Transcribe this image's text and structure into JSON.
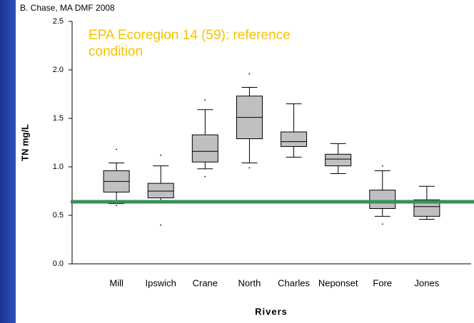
{
  "chart_data": {
    "type": "box",
    "source": "B. Chase, MA DMF 2008",
    "y_label": "TN mg/L",
    "x_label": "Rivers",
    "annotation": "EPA Ecoregion 14 (59): reference condition",
    "categories": [
      "Mill",
      "Ipswich",
      "Crane",
      "North",
      "Charles",
      "Neponset",
      "Fore",
      "Jones"
    ],
    "boxes": [
      {
        "whisker_low": 0.62,
        "q1": 0.74,
        "median": 0.85,
        "q3": 0.96,
        "whisker_high": 1.04,
        "outliers": [
          1.18,
          0.6
        ]
      },
      {
        "whisker_low": 0.65,
        "q1": 0.68,
        "median": 0.75,
        "q3": 0.83,
        "whisker_high": 1.01,
        "outliers": [
          1.12,
          0.4
        ]
      },
      {
        "whisker_low": 0.98,
        "q1": 1.05,
        "median": 1.16,
        "q3": 1.33,
        "whisker_high": 1.59,
        "outliers": [
          1.69,
          0.9
        ]
      },
      {
        "whisker_low": 1.04,
        "q1": 1.29,
        "median": 1.51,
        "q3": 1.73,
        "whisker_high": 1.82,
        "outliers": [
          1.96,
          0.99
        ]
      },
      {
        "whisker_low": 1.1,
        "q1": 1.21,
        "median": 1.26,
        "q3": 1.36,
        "whisker_high": 1.65
      },
      {
        "whisker_low": 0.93,
        "q1": 1.01,
        "median": 1.08,
        "q3": 1.13,
        "whisker_high": 1.24
      },
      {
        "whisker_low": 0.49,
        "q1": 0.57,
        "median": 0.64,
        "q3": 0.76,
        "whisker_high": 0.96,
        "outliers": [
          1.01,
          0.41
        ]
      },
      {
        "whisker_low": 0.46,
        "q1": 0.49,
        "median": 0.59,
        "q3": 0.66,
        "whisker_high": 0.8
      }
    ],
    "box_color": "#c0c0c0",
    "reference_line": 0.64,
    "reference_color": "#3a8f5a",
    "ylim": [
      0,
      2.5
    ],
    "yticks": [
      {
        "value": 0,
        "label": "0.0"
      },
      0.5,
      {
        "value": 1,
        "label": "1.0"
      },
      1.5,
      {
        "value": 2,
        "label": "2.0"
      },
      2.5
    ]
  }
}
